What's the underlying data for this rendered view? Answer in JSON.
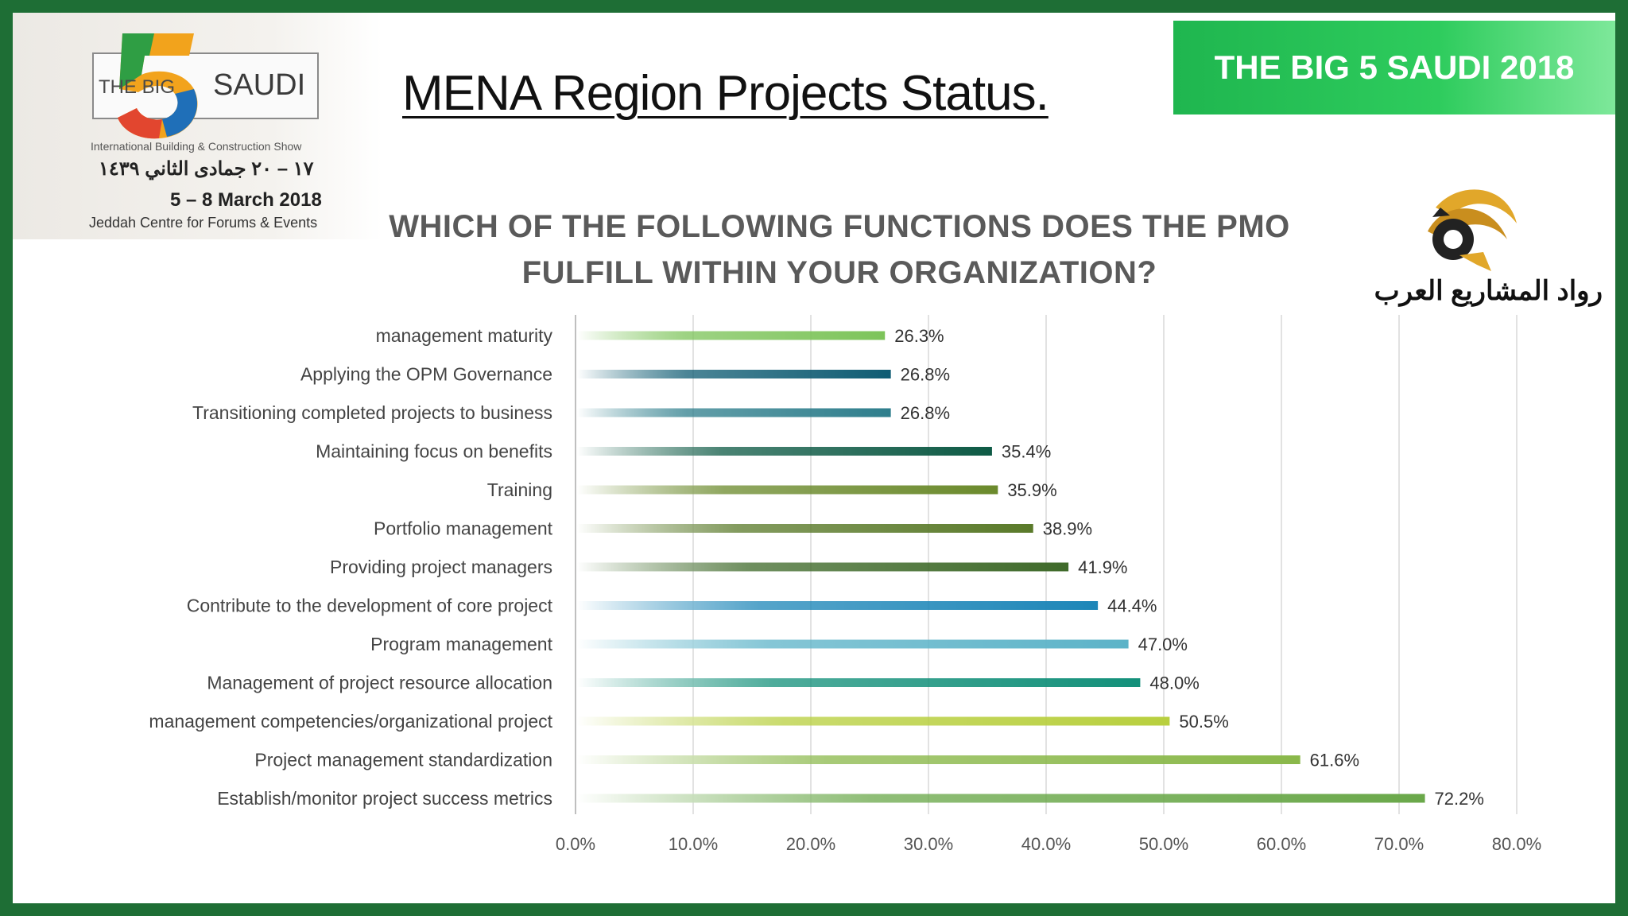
{
  "header": {
    "page_title": "MENA Region Projects Status.",
    "banner_text": "THE BIG 5 SAUDI 2018"
  },
  "event_logo": {
    "big_text": "THE BIG",
    "number": "5",
    "saudi_text": "SAUDI",
    "subtitle": "International Building & Construction Show",
    "arabic_date": "١٧ – ٢٠ جمادى الثاني ١٤٣٩",
    "date": "5 – 8 March 2018",
    "venue": "Jeddah Centre for Forums & Events"
  },
  "org_logo": {
    "text": "رواد المشاريع العرب"
  },
  "chart_data": {
    "type": "bar",
    "orientation": "horizontal",
    "title": "WHICH OF THE FOLLOWING FUNCTIONS DOES THE PMO FULFILL WITHIN YOUR ORGANIZATION?",
    "categories": [
      "management maturity",
      "Applying the OPM Governance",
      "Transitioning completed projects to business",
      "Maintaining focus on benefits",
      "Training",
      "Portfolio management",
      "Providing project managers",
      "Contribute to the development of core project",
      "Program management",
      "Management of project resource allocation",
      "management competencies/organizational project",
      "Project management standardization",
      "Establish/monitor project success metrics"
    ],
    "values": [
      26.3,
      26.8,
      26.8,
      35.4,
      35.9,
      38.9,
      41.9,
      44.4,
      47.0,
      48.0,
      50.5,
      61.6,
      72.2
    ],
    "value_labels": [
      "26.3%",
      "26.8%",
      "26.8%",
      "35.4%",
      "35.9%",
      "38.9%",
      "41.9%",
      "44.4%",
      "47.0%",
      "48.0%",
      "50.5%",
      "61.6%",
      "72.2%"
    ],
    "colors": [
      "#7dc45a",
      "#0f5c73",
      "#2e7e8c",
      "#0e5a45",
      "#6b8a2c",
      "#5a7a2a",
      "#3f6a2a",
      "#1d86b8",
      "#5cb3c8",
      "#13907a",
      "#b8cf3e",
      "#8ab84a",
      "#6aa84a"
    ],
    "xlim": [
      0,
      80
    ],
    "x_ticks": [
      0,
      10,
      20,
      30,
      40,
      50,
      60,
      70,
      80
    ],
    "x_tick_labels": [
      "0.0%",
      "10.0%",
      "20.0%",
      "30.0%",
      "40.0%",
      "50.0%",
      "60.0%",
      "70.0%",
      "80.0%"
    ],
    "grid": true,
    "legend": "none"
  }
}
